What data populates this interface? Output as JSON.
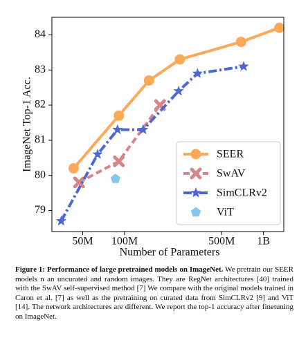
{
  "chart_data": {
    "type": "line",
    "xlabel": "Number of Parameters",
    "ylabel": "ImageNet Top-1 Acc.",
    "xscale": "log",
    "xlim": [
      30000000,
      1400000000
    ],
    "xticks": [
      {
        "value": 50000000,
        "label": "50M"
      },
      {
        "value": 100000000,
        "label": "100M"
      },
      {
        "value": 500000000,
        "label": "500M"
      },
      {
        "value": 1000000000,
        "label": "1B"
      }
    ],
    "ylim": [
      78.4,
      84.5
    ],
    "yticks": [
      79,
      80,
      81,
      82,
      83,
      84
    ],
    "legend": "lower right",
    "series": [
      {
        "name": "SEER",
        "color": "#fca95a",
        "marker": "circle",
        "line": "solid",
        "x": [
          43000000,
          91000000,
          150000000,
          250000000,
          690000000,
          1300000000
        ],
        "values": [
          80.2,
          81.7,
          82.7,
          83.3,
          83.8,
          84.2
        ]
      },
      {
        "name": "SwAV",
        "color": "#d4868a",
        "marker": "x",
        "line": "dashed",
        "x": [
          47000000,
          91000000,
          180000000
        ],
        "values": [
          79.8,
          80.4,
          82.0
        ]
      },
      {
        "name": "SimCLRv2",
        "color": "#4d68d4",
        "marker": "star",
        "line": "dashdot",
        "x": [
          35000000,
          64000000,
          89000000,
          136000000,
          245000000,
          335000000,
          720000000
        ],
        "values": [
          78.7,
          80.6,
          81.3,
          81.3,
          82.4,
          82.9,
          83.1
        ]
      },
      {
        "name": "ViT",
        "color": "#84c8f0",
        "marker": "pentagon",
        "line": "none",
        "x": [
          86000000
        ],
        "values": [
          79.9
        ]
      }
    ]
  },
  "caption": {
    "label": "Figure 1: Performance of large pretrained models on ImageNet.",
    "text": "We pretrain our SEER models n an uncurated and random images. They are RegNet architectures [40] trained with the SwAV self-supervised method [7] We compare with the original models trained in Caron et al. [7] as well as the pretraining on curated data from SimCLRv2 [9] and ViT [14]. The network architectures are different. We report the top-1 accuracy after finetuning on ImageNet."
  }
}
